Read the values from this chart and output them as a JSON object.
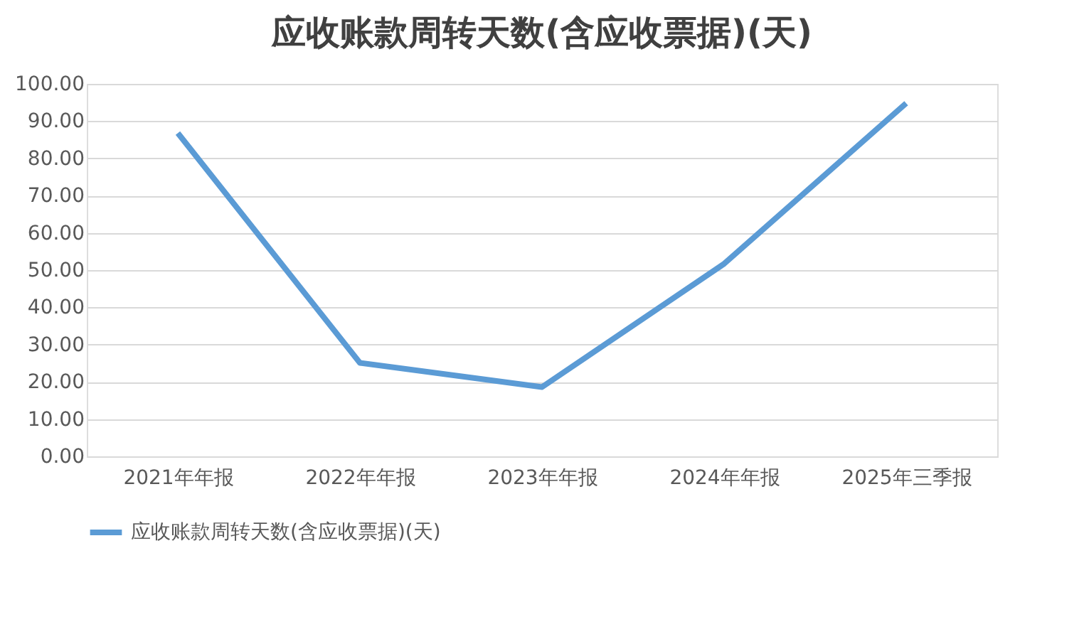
{
  "chart_data": {
    "type": "line",
    "title": "应收账款周转天数(含应收票据)(天)",
    "categories": [
      "2021年年报",
      "2022年年报",
      "2023年年报",
      "2024年年报",
      "2025年三季报"
    ],
    "series": [
      {
        "name": "应收账款周转天数(含应收票据)(天)",
        "color": "#5b9bd5",
        "values": [
          86.8,
          25.1,
          18.6,
          51.7,
          94.8
        ]
      }
    ],
    "ylim": [
      0,
      100
    ],
    "yticks": [
      {
        "value": 0,
        "label": "0.00"
      },
      {
        "value": 10,
        "label": "10.00"
      },
      {
        "value": 20,
        "label": "20.00"
      },
      {
        "value": 30,
        "label": "30.00"
      },
      {
        "value": 40,
        "label": "40.00"
      },
      {
        "value": 50,
        "label": "50.00"
      },
      {
        "value": 60,
        "label": "60.00"
      },
      {
        "value": 70,
        "label": "70.00"
      },
      {
        "value": 80,
        "label": "80.00"
      },
      {
        "value": 90,
        "label": "90.00"
      },
      {
        "value": 100,
        "label": "100.00"
      }
    ],
    "grid": "y",
    "legend": "bottom",
    "marker": "none",
    "line_style": "solid"
  }
}
